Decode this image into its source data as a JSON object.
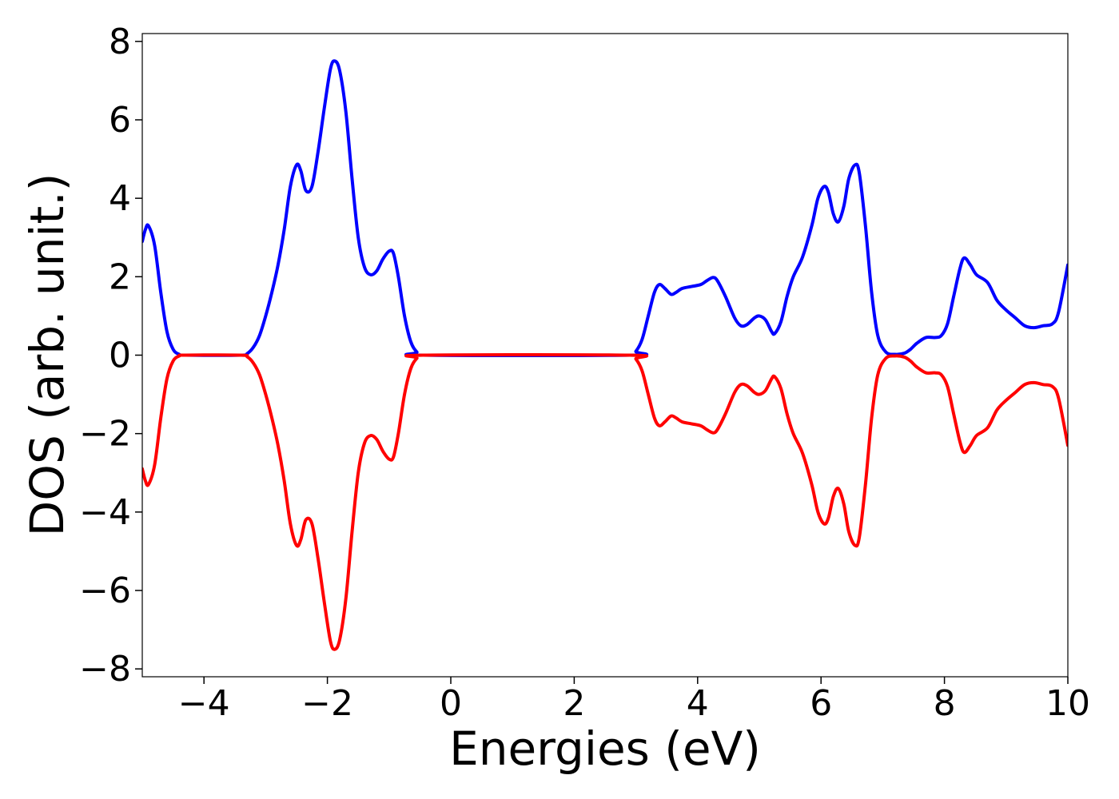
{
  "chart_data": {
    "type": "line",
    "title": "",
    "xlabel": "Energies (eV)",
    "ylabel": "DOS (arb. unit.)",
    "xlim": [
      -5,
      10
    ],
    "ylim": [
      -8.2,
      8.2
    ],
    "xticks": [
      -4,
      -2,
      0,
      2,
      4,
      6,
      8,
      10
    ],
    "xtick_labels": [
      "−4",
      "−2",
      "0",
      "2",
      "4",
      "6",
      "8",
      "10"
    ],
    "yticks": [
      -8,
      -6,
      -4,
      -2,
      0,
      2,
      4,
      6,
      8
    ],
    "ytick_labels": [
      "−8",
      "−6",
      "−4",
      "−2",
      "0",
      "2",
      "4",
      "6",
      "8"
    ],
    "grid": false,
    "legend": "none",
    "series": [
      {
        "color": "#0000ff",
        "points": [
          [
            -5.0,
            2.9
          ],
          [
            -4.95,
            3.2
          ],
          [
            -4.9,
            3.3
          ],
          [
            -4.8,
            2.8
          ],
          [
            -4.7,
            1.6
          ],
          [
            -4.6,
            0.6
          ],
          [
            -4.5,
            0.15
          ],
          [
            -4.4,
            0.02
          ],
          [
            -4.3,
            0.0
          ],
          [
            -3.4,
            0.0
          ],
          [
            -3.3,
            0.04
          ],
          [
            -3.2,
            0.2
          ],
          [
            -3.1,
            0.5
          ],
          [
            -3.0,
            1.0
          ],
          [
            -2.9,
            1.6
          ],
          [
            -2.8,
            2.3
          ],
          [
            -2.7,
            3.2
          ],
          [
            -2.6,
            4.3
          ],
          [
            -2.5,
            4.85
          ],
          [
            -2.43,
            4.7
          ],
          [
            -2.35,
            4.2
          ],
          [
            -2.25,
            4.3
          ],
          [
            -2.15,
            5.2
          ],
          [
            -2.05,
            6.3
          ],
          [
            -1.95,
            7.3
          ],
          [
            -1.88,
            7.5
          ],
          [
            -1.8,
            7.25
          ],
          [
            -1.7,
            6.2
          ],
          [
            -1.6,
            4.5
          ],
          [
            -1.5,
            3.0
          ],
          [
            -1.4,
            2.25
          ],
          [
            -1.3,
            2.05
          ],
          [
            -1.2,
            2.15
          ],
          [
            -1.1,
            2.45
          ],
          [
            -1.0,
            2.65
          ],
          [
            -0.93,
            2.6
          ],
          [
            -0.85,
            2.0
          ],
          [
            -0.75,
            1.0
          ],
          [
            -0.65,
            0.35
          ],
          [
            -0.55,
            0.08
          ],
          [
            -0.45,
            0.0
          ],
          [
            2.9,
            0.0
          ],
          [
            3.0,
            0.1
          ],
          [
            3.1,
            0.4
          ],
          [
            3.2,
            1.0
          ],
          [
            3.3,
            1.6
          ],
          [
            3.38,
            1.8
          ],
          [
            3.47,
            1.7
          ],
          [
            3.57,
            1.55
          ],
          [
            3.65,
            1.6
          ],
          [
            3.75,
            1.7
          ],
          [
            3.9,
            1.75
          ],
          [
            4.05,
            1.8
          ],
          [
            4.15,
            1.9
          ],
          [
            4.25,
            1.98
          ],
          [
            4.32,
            1.9
          ],
          [
            4.45,
            1.5
          ],
          [
            4.6,
            0.95
          ],
          [
            4.7,
            0.75
          ],
          [
            4.8,
            0.78
          ],
          [
            4.92,
            0.95
          ],
          [
            5.0,
            1.0
          ],
          [
            5.1,
            0.9
          ],
          [
            5.2,
            0.6
          ],
          [
            5.25,
            0.55
          ],
          [
            5.35,
            0.85
          ],
          [
            5.45,
            1.5
          ],
          [
            5.55,
            2.0
          ],
          [
            5.7,
            2.5
          ],
          [
            5.85,
            3.3
          ],
          [
            5.95,
            4.0
          ],
          [
            6.05,
            4.3
          ],
          [
            6.12,
            4.15
          ],
          [
            6.2,
            3.6
          ],
          [
            6.28,
            3.4
          ],
          [
            6.37,
            3.8
          ],
          [
            6.45,
            4.5
          ],
          [
            6.55,
            4.85
          ],
          [
            6.62,
            4.65
          ],
          [
            6.72,
            3.3
          ],
          [
            6.82,
            1.6
          ],
          [
            6.92,
            0.5
          ],
          [
            7.05,
            0.08
          ],
          [
            7.2,
            0.02
          ],
          [
            7.35,
            0.05
          ],
          [
            7.45,
            0.15
          ],
          [
            7.55,
            0.3
          ],
          [
            7.7,
            0.45
          ],
          [
            7.85,
            0.45
          ],
          [
            7.95,
            0.5
          ],
          [
            8.05,
            0.8
          ],
          [
            8.15,
            1.5
          ],
          [
            8.25,
            2.2
          ],
          [
            8.32,
            2.48
          ],
          [
            8.42,
            2.3
          ],
          [
            8.52,
            2.05
          ],
          [
            8.7,
            1.85
          ],
          [
            8.85,
            1.4
          ],
          [
            9.0,
            1.15
          ],
          [
            9.15,
            0.95
          ],
          [
            9.3,
            0.75
          ],
          [
            9.45,
            0.7
          ],
          [
            9.6,
            0.75
          ],
          [
            9.75,
            0.8
          ],
          [
            9.85,
            1.1
          ],
          [
            10.0,
            2.3
          ]
        ]
      },
      {
        "color": "#ff0000",
        "points": [
          [
            -5.0,
            -2.9
          ],
          [
            -4.95,
            -3.2
          ],
          [
            -4.9,
            -3.3
          ],
          [
            -4.8,
            -2.8
          ],
          [
            -4.7,
            -1.6
          ],
          [
            -4.6,
            -0.6
          ],
          [
            -4.5,
            -0.15
          ],
          [
            -4.4,
            -0.02
          ],
          [
            -4.3,
            0.0
          ],
          [
            -3.4,
            0.0
          ],
          [
            -3.3,
            -0.04
          ],
          [
            -3.2,
            -0.2
          ],
          [
            -3.1,
            -0.5
          ],
          [
            -3.0,
            -1.0
          ],
          [
            -2.9,
            -1.6
          ],
          [
            -2.8,
            -2.3
          ],
          [
            -2.7,
            -3.2
          ],
          [
            -2.6,
            -4.3
          ],
          [
            -2.5,
            -4.85
          ],
          [
            -2.43,
            -4.7
          ],
          [
            -2.35,
            -4.2
          ],
          [
            -2.25,
            -4.3
          ],
          [
            -2.15,
            -5.2
          ],
          [
            -2.05,
            -6.3
          ],
          [
            -1.95,
            -7.3
          ],
          [
            -1.88,
            -7.5
          ],
          [
            -1.8,
            -7.25
          ],
          [
            -1.7,
            -6.2
          ],
          [
            -1.6,
            -4.5
          ],
          [
            -1.5,
            -3.0
          ],
          [
            -1.4,
            -2.25
          ],
          [
            -1.3,
            -2.05
          ],
          [
            -1.2,
            -2.15
          ],
          [
            -1.1,
            -2.45
          ],
          [
            -1.0,
            -2.65
          ],
          [
            -0.93,
            -2.6
          ],
          [
            -0.85,
            -2.0
          ],
          [
            -0.75,
            -1.0
          ],
          [
            -0.65,
            -0.35
          ],
          [
            -0.55,
            -0.08
          ],
          [
            -0.45,
            0.0
          ],
          [
            2.9,
            0.0
          ],
          [
            3.0,
            -0.1
          ],
          [
            3.1,
            -0.4
          ],
          [
            3.2,
            -1.0
          ],
          [
            3.3,
            -1.6
          ],
          [
            3.38,
            -1.8
          ],
          [
            3.47,
            -1.7
          ],
          [
            3.57,
            -1.55
          ],
          [
            3.65,
            -1.6
          ],
          [
            3.75,
            -1.7
          ],
          [
            3.9,
            -1.75
          ],
          [
            4.05,
            -1.8
          ],
          [
            4.15,
            -1.9
          ],
          [
            4.25,
            -1.98
          ],
          [
            4.32,
            -1.9
          ],
          [
            4.45,
            -1.5
          ],
          [
            4.6,
            -0.95
          ],
          [
            4.7,
            -0.75
          ],
          [
            4.8,
            -0.78
          ],
          [
            4.92,
            -0.95
          ],
          [
            5.0,
            -1.0
          ],
          [
            5.1,
            -0.9
          ],
          [
            5.2,
            -0.6
          ],
          [
            5.25,
            -0.55
          ],
          [
            5.35,
            -0.85
          ],
          [
            5.45,
            -1.5
          ],
          [
            5.55,
            -2.0
          ],
          [
            5.7,
            -2.5
          ],
          [
            5.85,
            -3.3
          ],
          [
            5.95,
            -4.0
          ],
          [
            6.05,
            -4.3
          ],
          [
            6.12,
            -4.15
          ],
          [
            6.2,
            -3.6
          ],
          [
            6.28,
            -3.4
          ],
          [
            6.37,
            -3.8
          ],
          [
            6.45,
            -4.5
          ],
          [
            6.55,
            -4.85
          ],
          [
            6.62,
            -4.65
          ],
          [
            6.72,
            -3.3
          ],
          [
            6.82,
            -1.6
          ],
          [
            6.92,
            -0.5
          ],
          [
            7.05,
            -0.08
          ],
          [
            7.2,
            -0.02
          ],
          [
            7.35,
            -0.05
          ],
          [
            7.45,
            -0.15
          ],
          [
            7.55,
            -0.3
          ],
          [
            7.7,
            -0.45
          ],
          [
            7.85,
            -0.45
          ],
          [
            7.95,
            -0.5
          ],
          [
            8.05,
            -0.8
          ],
          [
            8.15,
            -1.5
          ],
          [
            8.25,
            -2.2
          ],
          [
            8.32,
            -2.48
          ],
          [
            8.42,
            -2.3
          ],
          [
            8.52,
            -2.05
          ],
          [
            8.7,
            -1.85
          ],
          [
            8.85,
            -1.4
          ],
          [
            9.0,
            -1.15
          ],
          [
            9.15,
            -0.95
          ],
          [
            9.3,
            -0.75
          ],
          [
            9.45,
            -0.7
          ],
          [
            9.6,
            -0.75
          ],
          [
            9.75,
            -0.8
          ],
          [
            9.85,
            -1.1
          ],
          [
            10.0,
            -2.3
          ]
        ]
      }
    ]
  }
}
